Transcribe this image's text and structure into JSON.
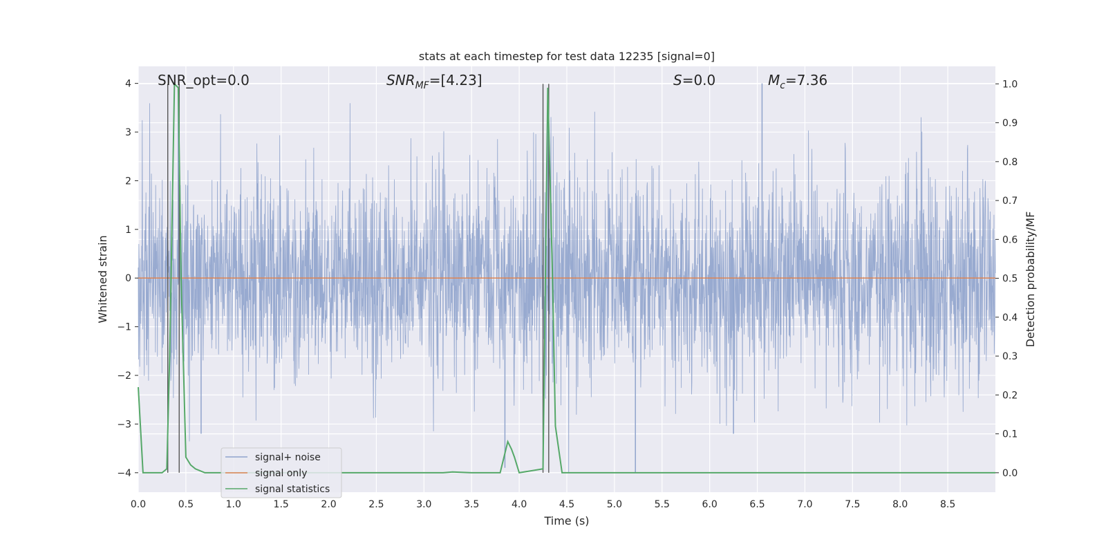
{
  "chart_data": {
    "type": "line",
    "title": "stats at each timestep for test data 12235 [signal=0]",
    "xlabel": "Time (s)",
    "ylabel": "Whitened strain",
    "y2label": "Detection probability/MF",
    "xlim": [
      0,
      9.0
    ],
    "ylim": [
      -4.4,
      4.35
    ],
    "y2lim": [
      -0.05,
      1.045
    ],
    "xticks": [
      "0.0",
      "0.5",
      "1.0",
      "1.5",
      "2.0",
      "2.5",
      "3.0",
      "3.5",
      "4.0",
      "4.5",
      "5.0",
      "5.5",
      "6.0",
      "6.5",
      "7.0",
      "7.5",
      "8.0",
      "8.5"
    ],
    "yticks": [
      "−4",
      "−3",
      "−2",
      "−1",
      "0",
      "1",
      "2",
      "3",
      "4"
    ],
    "y2ticks": [
      "0.0",
      "0.1",
      "0.2",
      "0.3",
      "0.4",
      "0.5",
      "0.6",
      "0.7",
      "0.8",
      "0.9",
      "1.0"
    ],
    "grid": true,
    "legend_position": "lower-left",
    "annotations": {
      "snr_opt": "SNR_opt=0.0",
      "snr_mf_main": "SNR",
      "snr_mf_sub": "MF",
      "snr_mf_value": "=[4.23]",
      "s_symbol": "S",
      "s_value": "=0.0",
      "mc_symbol": "M",
      "mc_sub": "c",
      "mc_value": "=7.36"
    },
    "vlines_s": [
      0.31,
      0.43,
      4.25,
      4.31
    ],
    "series": [
      {
        "name": "signal+ noise",
        "color": "#8fa3cc",
        "axis": "left",
        "description_range": [
          -4.0,
          4.0
        ],
        "envelope_typical": 1.6
      },
      {
        "name": "signal only",
        "color": "#dd8452",
        "axis": "left",
        "x": [
          0,
          9.0
        ],
        "values": [
          0,
          0
        ]
      },
      {
        "name": "signal statistics",
        "color": "#55a868",
        "axis": "right",
        "x": [
          0.0,
          0.05,
          0.25,
          0.3,
          0.33,
          0.38,
          0.42,
          0.45,
          0.5,
          0.55,
          0.6,
          0.7,
          1.0,
          3.0,
          3.2,
          3.3,
          3.5,
          3.8,
          3.85,
          3.88,
          3.92,
          3.95,
          4.0,
          4.25,
          4.3,
          4.35,
          4.38,
          4.45,
          4.5,
          9.0
        ],
        "values": [
          0.22,
          0.0,
          0.0,
          0.01,
          0.3,
          1.0,
          0.99,
          0.5,
          0.04,
          0.02,
          0.01,
          0.0,
          0.0,
          0.0,
          0.0,
          0.002,
          0.0,
          0.0,
          0.05,
          0.08,
          0.06,
          0.04,
          0.0,
          0.01,
          0.99,
          0.5,
          0.12,
          0.0,
          0.0,
          0.0
        ]
      }
    ]
  },
  "colors": {
    "plot_bg": "#eaeaf2",
    "grid": "#ffffff",
    "noise": "#8fa3cc",
    "signal": "#dd8452",
    "stats": "#55a868",
    "vline": "#555555"
  }
}
